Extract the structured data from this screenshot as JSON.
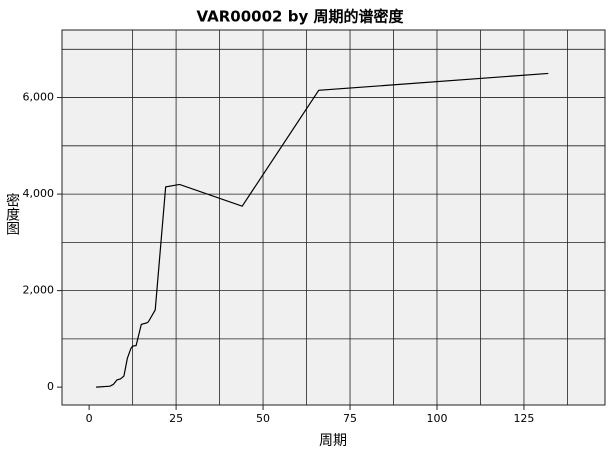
{
  "chart_data": {
    "type": "line",
    "title": "VAR00002 by 周期的谱密度",
    "x_label": "周期",
    "y_label": "密度图",
    "x": [
      2,
      6,
      7,
      8,
      9,
      10,
      11,
      12,
      12.5,
      13.5,
      15,
      16.5,
      17,
      19,
      22,
      26,
      44,
      66,
      132
    ],
    "values": [
      0,
      20,
      60,
      150,
      170,
      230,
      600,
      800,
      850,
      860,
      1300,
      1330,
      1350,
      1600,
      4150,
      4200,
      3750,
      6150,
      6500
    ],
    "color": "#000000",
    "xlim": [
      -7.8,
      148.3
    ],
    "ylim": [
      -370,
      7400
    ],
    "xticks": [
      0,
      25,
      50,
      75,
      100,
      125
    ],
    "yticks": [
      0,
      {
        "value": 2000,
        "label": "2,000"
      },
      {
        "value": 4000,
        "label": "4,000"
      },
      {
        "value": 6000,
        "label": "6,000"
      }
    ],
    "xgrid": [
      12.5,
      25,
      37.5,
      50,
      62.5,
      75,
      87.5,
      100,
      112.5,
      125,
      137.5
    ],
    "ygrid": [
      1000,
      2000,
      3000,
      4000,
      5000,
      6000,
      7000
    ],
    "grid": true
  }
}
